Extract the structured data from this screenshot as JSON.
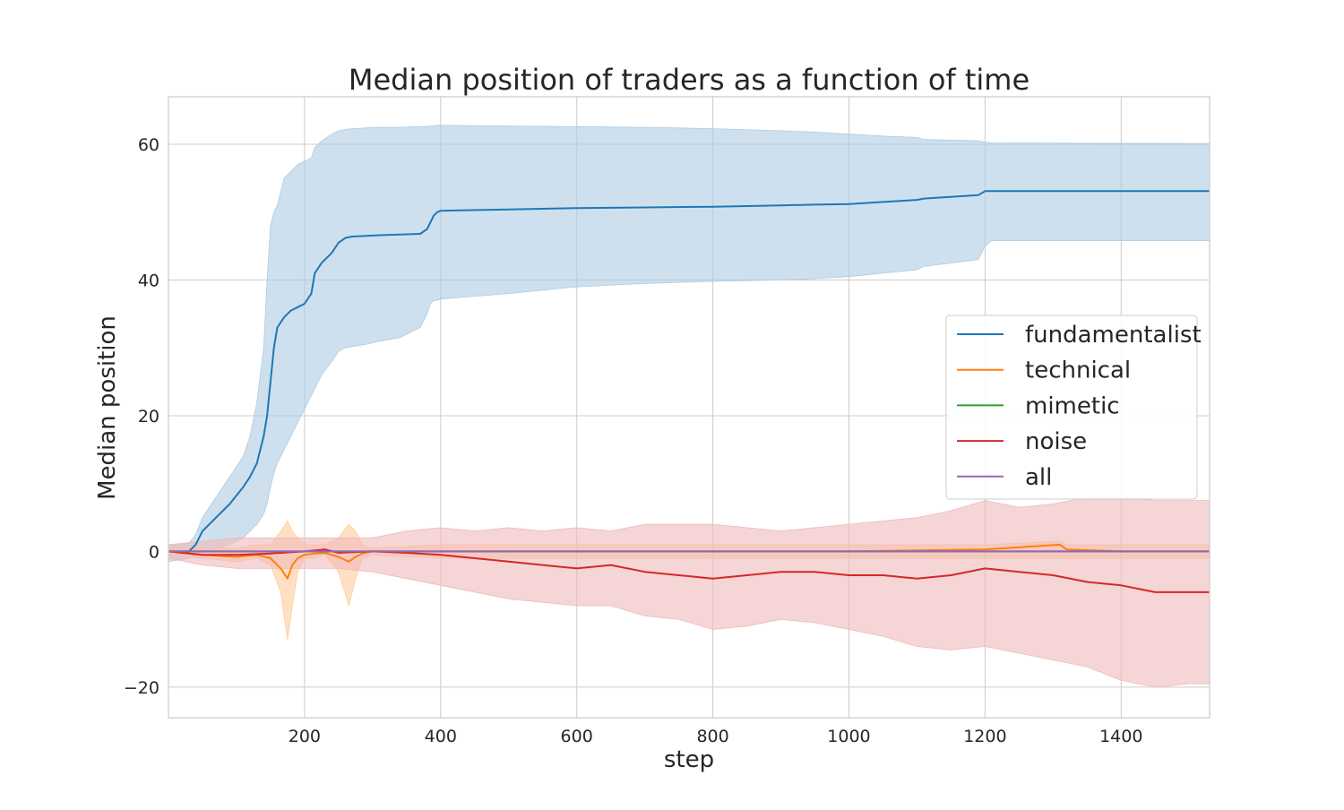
{
  "chart_data": {
    "type": "line",
    "title": "Median position of traders as a function of time",
    "xlabel": "step",
    "ylabel": "Median position",
    "xlim": [
      0,
      1530
    ],
    "ylim": [
      -24.5,
      67
    ],
    "x_ticks": [
      200,
      400,
      600,
      800,
      1000,
      1200,
      1400
    ],
    "y_ticks": [
      -20,
      0,
      20,
      40,
      60
    ],
    "y_tick_labels": [
      "−20",
      "0",
      "20",
      "40",
      "60"
    ],
    "grid": true,
    "legend_position": "center-right",
    "series": [
      {
        "name": "fundamentalist",
        "color": "#1f77b4",
        "band_color": "#aecbe3",
        "x": [
          0,
          30,
          40,
          50,
          70,
          90,
          110,
          120,
          130,
          140,
          145,
          150,
          155,
          160,
          170,
          180,
          190,
          200,
          210,
          215,
          225,
          240,
          250,
          260,
          270,
          290,
          310,
          340,
          370,
          380,
          385,
          390,
          395,
          400,
          500,
          600,
          700,
          800,
          900,
          950,
          1000,
          1050,
          1100,
          1110,
          1190,
          1200,
          1210,
          1530
        ],
        "y": [
          0,
          0,
          1,
          3,
          5,
          7,
          9.5,
          11,
          13,
          17,
          20,
          25,
          30,
          33,
          34.5,
          35.5,
          36,
          36.5,
          38,
          41,
          42.5,
          44,
          45.5,
          46.2,
          46.4,
          46.5,
          46.6,
          46.7,
          46.8,
          47.5,
          48.5,
          49.5,
          50,
          50.2,
          50.4,
          50.6,
          50.7,
          50.8,
          51,
          51.1,
          51.2,
          51.5,
          51.8,
          52,
          52.5,
          53.1,
          53.1,
          53.1
        ],
        "lower": [
          -1.5,
          -1,
          -0.5,
          0,
          0.5,
          1,
          2,
          3,
          4,
          5.5,
          7,
          9.5,
          11.5,
          13,
          15,
          17,
          19,
          21,
          23,
          24,
          26,
          28,
          29.5,
          30,
          30.2,
          30.5,
          31,
          31.5,
          33,
          35,
          36.5,
          37,
          37,
          37.2,
          38,
          39,
          39.5,
          39.8,
          40,
          40.2,
          40.5,
          41,
          41.5,
          42,
          43,
          45,
          45.8,
          45.8
        ],
        "upper": [
          1,
          1.2,
          2.5,
          5,
          8,
          11,
          14,
          17,
          22,
          30,
          40,
          48,
          50,
          51,
          55,
          56,
          57,
          57.5,
          58,
          59.5,
          60.5,
          61.5,
          62,
          62.2,
          62.3,
          62.4,
          62.5,
          62.5,
          62.6,
          62.6,
          62.7,
          62.7,
          62.8,
          62.8,
          62.7,
          62.6,
          62.5,
          62.3,
          62,
          61.8,
          61.5,
          61.2,
          61,
          60.7,
          60.5,
          60.3,
          60.2,
          60.1
        ]
      },
      {
        "name": "technical",
        "color": "#ff7f0e",
        "band_color": "#ffcc9a",
        "x": [
          0,
          50,
          100,
          130,
          150,
          165,
          175,
          182,
          190,
          200,
          215,
          230,
          250,
          265,
          275,
          285,
          300,
          400,
          600,
          800,
          1000,
          1200,
          1310,
          1320,
          1400,
          1530
        ],
        "y": [
          0,
          -0.5,
          -0.8,
          -0.5,
          -1,
          -2.5,
          -4,
          -2,
          -1,
          -0.5,
          -0.3,
          -0.2,
          -0.8,
          -1.5,
          -0.8,
          -0.3,
          0,
          0,
          0,
          0,
          0,
          0.3,
          1,
          0.3,
          0,
          0
        ],
        "lower": [
          -0.5,
          -1,
          -1.5,
          -1,
          -2,
          -6,
          -13,
          -8,
          -3,
          -1,
          -1,
          -0.5,
          -3,
          -8,
          -4,
          -1,
          -0.5,
          -1,
          -1,
          -1,
          -1,
          -1,
          -1,
          -1,
          -1,
          -1
        ],
        "upper": [
          0.5,
          0.5,
          0.5,
          1,
          1,
          3,
          4.5,
          3,
          2,
          1,
          1,
          1,
          2,
          4,
          3,
          1,
          0.5,
          1,
          1,
          1,
          1,
          1,
          1.5,
          1,
          1,
          1
        ]
      },
      {
        "name": "mimetic",
        "color": "#2ca02c",
        "x": [
          0,
          1530
        ],
        "y": [
          0,
          0
        ]
      },
      {
        "name": "noise",
        "color": "#d62728",
        "band_color": "#f0b9bb",
        "x": [
          0,
          50,
          100,
          150,
          200,
          230,
          250,
          300,
          350,
          400,
          450,
          500,
          550,
          600,
          650,
          700,
          750,
          800,
          850,
          900,
          950,
          1000,
          1050,
          1100,
          1150,
          1200,
          1250,
          1300,
          1350,
          1400,
          1450,
          1500,
          1530
        ],
        "y": [
          0,
          -0.5,
          -0.5,
          -0.3,
          0,
          0.3,
          -0.2,
          0,
          -0.2,
          -0.5,
          -1,
          -1.5,
          -2,
          -2.5,
          -2,
          -3,
          -3.5,
          -4,
          -3.5,
          -3,
          -3,
          -3.5,
          -3.5,
          -4,
          -3.5,
          -2.5,
          -3,
          -3.5,
          -4.5,
          -5,
          -6,
          -6,
          -6
        ],
        "lower": [
          -1,
          -2,
          -2.5,
          -2.5,
          -2.5,
          -2.5,
          -2.5,
          -3,
          -4,
          -5,
          -6,
          -7,
          -7.5,
          -8,
          -8,
          -9.5,
          -10,
          -11.5,
          -11,
          -10,
          -10.5,
          -11.5,
          -12.5,
          -14,
          -14.5,
          -14,
          -15,
          -16,
          -17,
          -19,
          -20,
          -19.5,
          -19.5
        ],
        "upper": [
          1,
          1.5,
          2,
          2,
          2,
          2,
          2,
          2,
          3,
          3.5,
          3,
          3.5,
          3,
          3.5,
          3,
          4,
          4,
          4,
          3.5,
          3,
          3.5,
          4,
          4.5,
          5,
          6,
          7.5,
          6.5,
          7,
          8,
          8,
          7.5,
          7.5,
          7.5
        ]
      },
      {
        "name": "all",
        "color": "#9467bd",
        "x": [
          0,
          1530
        ],
        "y": [
          0,
          0
        ]
      }
    ]
  }
}
